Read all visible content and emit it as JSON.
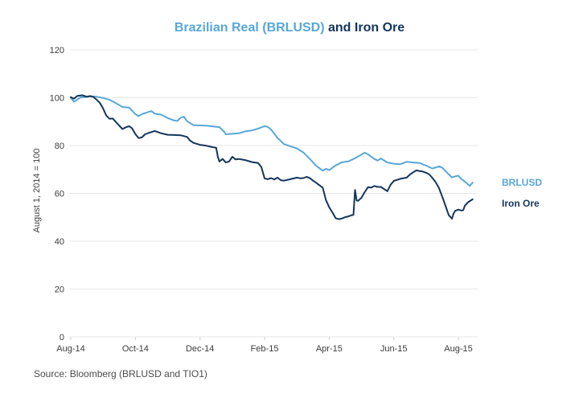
{
  "title": {
    "part1": "Brazilian Real (BRLUSD)",
    "part2": " and Iron Ore"
  },
  "source_note": "Source: Bloomberg (BRLUSD and TIO1)",
  "colors": {
    "brlusd": "#57a7d9",
    "iron_ore": "#14355c",
    "grid": "#e7e7e7",
    "tick_mark": "#d0d0d0",
    "axis_text": "#3c3c3c",
    "source_text": "#4b4c4e"
  },
  "legend": {
    "items": [
      {
        "label": "BRLUSD",
        "color": "#57a7d9"
      },
      {
        "label": "Iron Ore",
        "color": "#14355c"
      }
    ]
  },
  "chart_data": {
    "type": "line",
    "title": "Brazilian Real (BRLUSD) and Iron Ore",
    "xlabel": "",
    "ylabel": "August 1, 2014 = 100",
    "ylim": [
      0,
      120
    ],
    "yticks": [
      0,
      20,
      40,
      60,
      80,
      100,
      120
    ],
    "x_unit": "months since Aug 1, 2014",
    "x_range_months": [
      0,
      12.44
    ],
    "xtick_positions_months": [
      0,
      2,
      4,
      6,
      8,
      10,
      12
    ],
    "xtick_labels": [
      "Aug-14",
      "Oct-14",
      "Dec-14",
      "Feb-15",
      "Apr-15",
      "Jun-15",
      "Aug-15"
    ],
    "grid": "horizontal",
    "legend_position": "right",
    "series": [
      {
        "name": "BRLUSD",
        "color": "#57a7d9",
        "points": [
          [
            0,
            100
          ],
          [
            0.1,
            98.3
          ],
          [
            0.2,
            99.2
          ],
          [
            0.3,
            100.1
          ],
          [
            0.4,
            100.2
          ],
          [
            0.6,
            100.6
          ],
          [
            0.8,
            100.4
          ],
          [
            1.0,
            99.9
          ],
          [
            1.2,
            99.1
          ],
          [
            1.4,
            97.7
          ],
          [
            1.6,
            96.1
          ],
          [
            1.8,
            95.9
          ],
          [
            1.9,
            94.6
          ],
          [
            2.0,
            93.1
          ],
          [
            2.1,
            92.3
          ],
          [
            2.2,
            93.1
          ],
          [
            2.4,
            94.0
          ],
          [
            2.5,
            94.4
          ],
          [
            2.6,
            93.3
          ],
          [
            2.8,
            92.9
          ],
          [
            3.0,
            91.5
          ],
          [
            3.2,
            90.5
          ],
          [
            3.3,
            90.3
          ],
          [
            3.4,
            91.6
          ],
          [
            3.5,
            92.1
          ],
          [
            3.6,
            90.2
          ],
          [
            3.8,
            88.5
          ],
          [
            4.0,
            88.4
          ],
          [
            4.2,
            88.3
          ],
          [
            4.4,
            88.0
          ],
          [
            4.6,
            87.7
          ],
          [
            4.75,
            85.7
          ],
          [
            4.8,
            84.7
          ],
          [
            5.0,
            84.9
          ],
          [
            5.2,
            85.1
          ],
          [
            5.4,
            85.9
          ],
          [
            5.6,
            86.3
          ],
          [
            5.8,
            87.1
          ],
          [
            6.0,
            88.1
          ],
          [
            6.1,
            87.8
          ],
          [
            6.2,
            86.7
          ],
          [
            6.4,
            83.2
          ],
          [
            6.6,
            80.6
          ],
          [
            6.8,
            79.7
          ],
          [
            7.0,
            78.8
          ],
          [
            7.2,
            77.1
          ],
          [
            7.4,
            74.4
          ],
          [
            7.6,
            71.5
          ],
          [
            7.8,
            69.5
          ],
          [
            7.9,
            70.3
          ],
          [
            8.0,
            69.7
          ],
          [
            8.2,
            71.7
          ],
          [
            8.4,
            73.0
          ],
          [
            8.6,
            73.4
          ],
          [
            8.8,
            74.7
          ],
          [
            9.0,
            76.2
          ],
          [
            9.1,
            77.0
          ],
          [
            9.2,
            76.3
          ],
          [
            9.4,
            74.4
          ],
          [
            9.5,
            73.7
          ],
          [
            9.6,
            74.6
          ],
          [
            9.8,
            72.9
          ],
          [
            10.0,
            72.4
          ],
          [
            10.2,
            72.2
          ],
          [
            10.4,
            73.2
          ],
          [
            10.6,
            72.9
          ],
          [
            10.8,
            72.7
          ],
          [
            11.0,
            71.6
          ],
          [
            11.2,
            70.4
          ],
          [
            11.4,
            71.3
          ],
          [
            11.5,
            70.7
          ],
          [
            11.6,
            69.3
          ],
          [
            11.8,
            66.7
          ],
          [
            11.9,
            67.1
          ],
          [
            12.0,
            67.4
          ],
          [
            12.1,
            65.9
          ],
          [
            12.2,
            64.9
          ],
          [
            12.35,
            63.1
          ],
          [
            12.44,
            64.5
          ]
        ]
      },
      {
        "name": "Iron Ore",
        "color": "#14355c",
        "points": [
          [
            0,
            100.2
          ],
          [
            0.1,
            99.6
          ],
          [
            0.2,
            100.7
          ],
          [
            0.35,
            101.0
          ],
          [
            0.5,
            100.4
          ],
          [
            0.6,
            100.7
          ],
          [
            0.7,
            100.3
          ],
          [
            0.8,
            99.2
          ],
          [
            0.9,
            97.8
          ],
          [
            1.0,
            95.5
          ],
          [
            1.1,
            92.5
          ],
          [
            1.2,
            91.2
          ],
          [
            1.3,
            91.3
          ],
          [
            1.4,
            89.8
          ],
          [
            1.5,
            88.3
          ],
          [
            1.6,
            86.9
          ],
          [
            1.7,
            87.6
          ],
          [
            1.8,
            88.1
          ],
          [
            1.9,
            87.2
          ],
          [
            2.0,
            84.8
          ],
          [
            2.1,
            83.1
          ],
          [
            2.2,
            83.4
          ],
          [
            2.3,
            84.7
          ],
          [
            2.4,
            85.2
          ],
          [
            2.6,
            86.1
          ],
          [
            2.8,
            85.1
          ],
          [
            3.0,
            84.5
          ],
          [
            3.2,
            84.4
          ],
          [
            3.4,
            84.3
          ],
          [
            3.6,
            83.6
          ],
          [
            3.7,
            82.0
          ],
          [
            3.8,
            81.1
          ],
          [
            4.0,
            80.3
          ],
          [
            4.2,
            79.9
          ],
          [
            4.4,
            79.3
          ],
          [
            4.5,
            79.1
          ],
          [
            4.55,
            75.5
          ],
          [
            4.6,
            73.3
          ],
          [
            4.7,
            74.4
          ],
          [
            4.8,
            72.9
          ],
          [
            4.9,
            73.3
          ],
          [
            5.0,
            75.3
          ],
          [
            5.1,
            74.2
          ],
          [
            5.2,
            74.4
          ],
          [
            5.4,
            73.9
          ],
          [
            5.6,
            73.1
          ],
          [
            5.8,
            72.7
          ],
          [
            5.9,
            71.0
          ],
          [
            6.0,
            66.3
          ],
          [
            6.1,
            65.9
          ],
          [
            6.2,
            66.4
          ],
          [
            6.3,
            65.8
          ],
          [
            6.4,
            66.6
          ],
          [
            6.5,
            65.5
          ],
          [
            6.6,
            65.3
          ],
          [
            6.8,
            65.9
          ],
          [
            7.0,
            66.6
          ],
          [
            7.1,
            66.3
          ],
          [
            7.2,
            66.4
          ],
          [
            7.3,
            66.9
          ],
          [
            7.4,
            66.4
          ],
          [
            7.5,
            65.3
          ],
          [
            7.6,
            64.4
          ],
          [
            7.8,
            62.4
          ],
          [
            7.9,
            57.2
          ],
          [
            8.0,
            54.2
          ],
          [
            8.1,
            52.0
          ],
          [
            8.2,
            49.6
          ],
          [
            8.3,
            49.2
          ],
          [
            8.4,
            49.5
          ],
          [
            8.5,
            50.1
          ],
          [
            8.6,
            50.4
          ],
          [
            8.7,
            50.9
          ],
          [
            8.75,
            51.0
          ],
          [
            8.8,
            61.4
          ],
          [
            8.85,
            57.0
          ],
          [
            8.9,
            56.9
          ],
          [
            9.0,
            58.2
          ],
          [
            9.1,
            60.5
          ],
          [
            9.2,
            62.6
          ],
          [
            9.3,
            62.4
          ],
          [
            9.4,
            63.1
          ],
          [
            9.5,
            62.7
          ],
          [
            9.6,
            62.7
          ],
          [
            9.7,
            61.8
          ],
          [
            9.8,
            60.9
          ],
          [
            9.9,
            63.6
          ],
          [
            10.0,
            65.2
          ],
          [
            10.2,
            66.1
          ],
          [
            10.4,
            66.6
          ],
          [
            10.5,
            67.9
          ],
          [
            10.6,
            68.8
          ],
          [
            10.7,
            69.6
          ],
          [
            10.8,
            69.3
          ],
          [
            10.9,
            69.1
          ],
          [
            11.0,
            68.6
          ],
          [
            11.1,
            67.9
          ],
          [
            11.2,
            66.4
          ],
          [
            11.3,
            64.6
          ],
          [
            11.4,
            62.2
          ],
          [
            11.5,
            58.6
          ],
          [
            11.6,
            54.8
          ],
          [
            11.7,
            50.9
          ],
          [
            11.8,
            49.4
          ],
          [
            11.85,
            51.5
          ],
          [
            11.9,
            52.7
          ],
          [
            12.0,
            53.2
          ],
          [
            12.1,
            52.8
          ],
          [
            12.15,
            53.0
          ],
          [
            12.2,
            54.9
          ],
          [
            12.3,
            56.3
          ],
          [
            12.44,
            57.5
          ]
        ]
      }
    ]
  }
}
